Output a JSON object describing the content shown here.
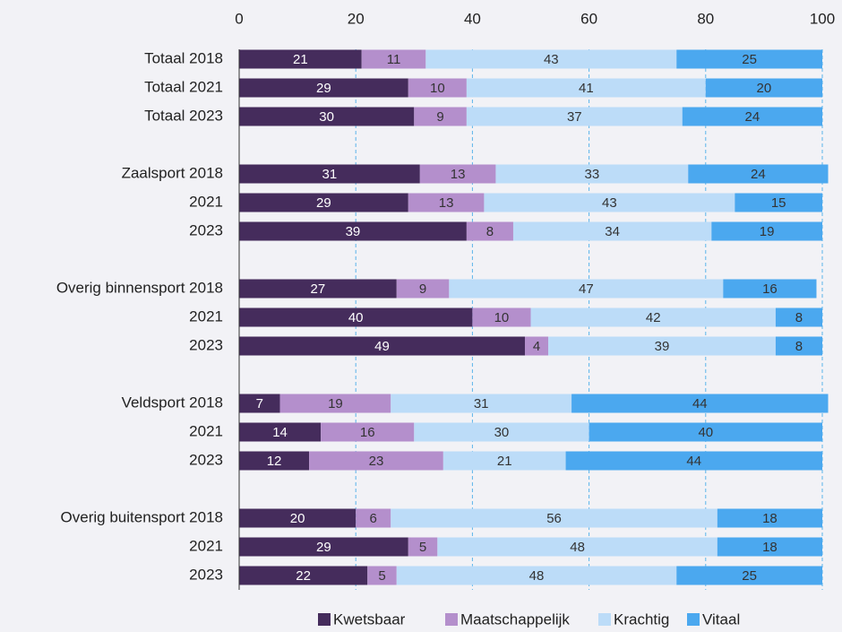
{
  "chart_data": {
    "type": "stacked-bar-horizontal",
    "categories": [
      "Totaal 2018",
      "Totaal 2021",
      "Totaal 2023",
      null,
      "Zaalsport 2018",
      "2021",
      "2023",
      null,
      "Overig binnensport 2018",
      "2021",
      "2023",
      null,
      "Veldsport 2018",
      "2021",
      "2023",
      null,
      "Overig buitensport 2018",
      "2021",
      "2023"
    ],
    "series": [
      {
        "name": "Kwetsbaar",
        "color": "#452c5c",
        "values": [
          21,
          29,
          30,
          null,
          31,
          29,
          39,
          null,
          27,
          40,
          49,
          null,
          7,
          14,
          12,
          null,
          20,
          29,
          22
        ]
      },
      {
        "name": "Maatschappelijk",
        "color": "#b48fcc",
        "values": [
          11,
          10,
          9,
          null,
          13,
          13,
          8,
          null,
          9,
          10,
          4,
          null,
          19,
          16,
          23,
          null,
          6,
          5,
          5
        ]
      },
      {
        "name": "Krachtig",
        "color": "#bcdcf8",
        "values": [
          43,
          41,
          37,
          null,
          33,
          43,
          34,
          null,
          47,
          42,
          39,
          null,
          31,
          30,
          21,
          null,
          56,
          48,
          48
        ]
      },
      {
        "name": "Vitaal",
        "color": "#4ba8ef",
        "values": [
          25,
          20,
          24,
          null,
          24,
          15,
          19,
          null,
          16,
          8,
          8,
          null,
          44,
          40,
          44,
          null,
          18,
          18,
          25
        ]
      }
    ],
    "xlim": [
      0,
      100
    ],
    "xticks": [
      0,
      20,
      40,
      60,
      80,
      100
    ],
    "grid": true,
    "legend": "bottom"
  }
}
